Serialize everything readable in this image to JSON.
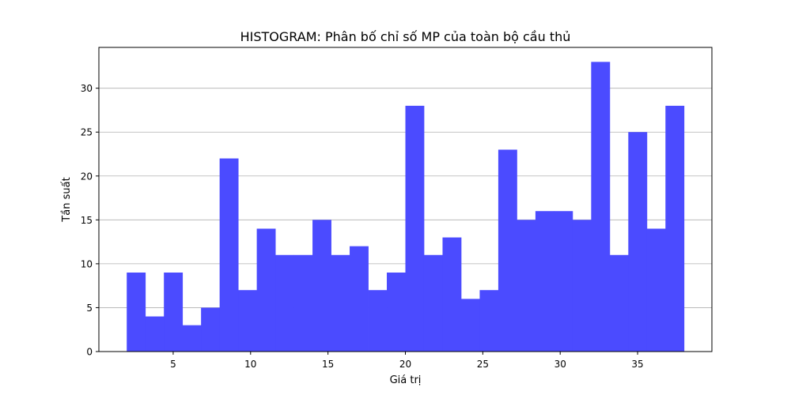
{
  "chart_data": {
    "type": "bar",
    "title": "HISTOGRAM: Phân bố chỉ số MP của toàn bộ cầu thủ",
    "xlabel": "Giá trị",
    "ylabel": "Tần suất",
    "xlim": [
      0.2,
      39.8
    ],
    "ylim": [
      0,
      34.65
    ],
    "xticks": [
      5,
      10,
      15,
      20,
      25,
      30,
      35
    ],
    "yticks": [
      0,
      5,
      10,
      15,
      20,
      25,
      30
    ],
    "grid": "y",
    "bin_start": 2,
    "bin_width": 1.2,
    "values": [
      9,
      4,
      9,
      3,
      5,
      22,
      7,
      14,
      11,
      11,
      15,
      11,
      12,
      7,
      9,
      28,
      11,
      13,
      6,
      7,
      23,
      15,
      16,
      16,
      15,
      33,
      11,
      25,
      14,
      28
    ],
    "bar_color": "#4b4bff"
  }
}
